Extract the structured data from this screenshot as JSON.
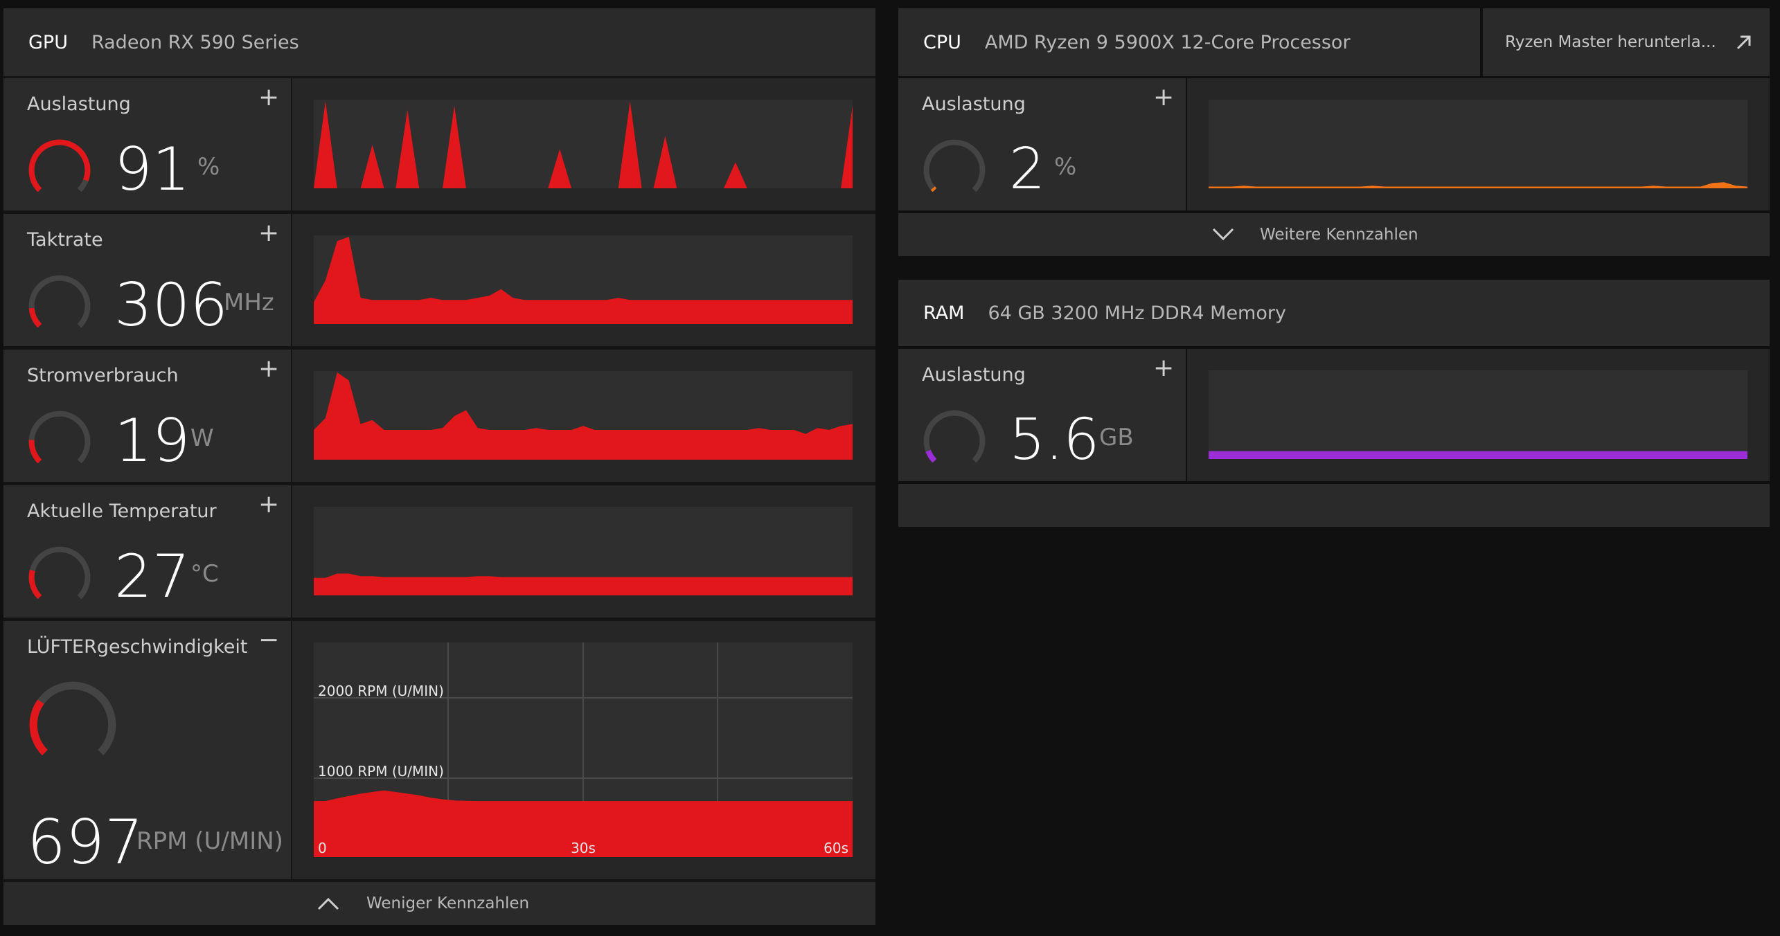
{
  "gpu": {
    "key": "GPU",
    "name": "Radeon RX 590 Series",
    "metrics": [
      {
        "label": "Auslastung",
        "value": "91",
        "unit": "%",
        "toggle": "+",
        "level": 0.91,
        "color": "#e2171c",
        "series": [
          0,
          100,
          0,
          0,
          0,
          50,
          0,
          0,
          90,
          0,
          0,
          0,
          95,
          0,
          0,
          0,
          0,
          0,
          0,
          0,
          0,
          45,
          0,
          0,
          0,
          0,
          0,
          100,
          0,
          0,
          60,
          0,
          0,
          0,
          0,
          0,
          30,
          0,
          0,
          0,
          0,
          0,
          0,
          0,
          0,
          0,
          95
        ]
      },
      {
        "label": "Taktrate",
        "value": "306",
        "unit": "MHz",
        "toggle": "+",
        "level": 0.15,
        "color": "#e2171c",
        "series": [
          10,
          20,
          38,
          40,
          12,
          11,
          11,
          11,
          11,
          11,
          12,
          11,
          11,
          11,
          12,
          13,
          16,
          12,
          11,
          11,
          11,
          11,
          11,
          11,
          11,
          11,
          12,
          11,
          11,
          11,
          11,
          11,
          11,
          11,
          11,
          11,
          11,
          11,
          11,
          11,
          11,
          11,
          11,
          11,
          11,
          11,
          11
        ]
      },
      {
        "label": "Stromverbrauch",
        "value": "19",
        "unit": "W",
        "toggle": "+",
        "level": 0.18,
        "color": "#e2171c",
        "series": [
          15,
          21,
          44,
          40,
          18,
          20,
          15,
          15,
          15,
          15,
          15,
          16,
          22,
          25,
          16,
          15,
          15,
          15,
          15,
          16,
          15,
          15,
          15,
          17,
          15,
          15,
          15,
          15,
          15,
          15,
          15,
          15,
          15,
          15,
          15,
          15,
          15,
          15,
          16,
          15,
          15,
          15,
          13,
          16,
          15,
          17,
          18
        ]
      },
      {
        "label": "Aktuelle Temperatur",
        "value": "27",
        "unit": "°C",
        "toggle": "+",
        "level": 0.22,
        "color": "#e2171c",
        "series": [
          20,
          20,
          25,
          25,
          22,
          22,
          21,
          21,
          21,
          21,
          21,
          21,
          21,
          21,
          22,
          22,
          21,
          21,
          21,
          21,
          21,
          21,
          21,
          21,
          21,
          21,
          21,
          21,
          21,
          21,
          21,
          21,
          21,
          21,
          21,
          21,
          21,
          21,
          21,
          21,
          21,
          21,
          21,
          21,
          21,
          21,
          21
        ]
      },
      {
        "label": "LÜFTERgeschwindigkeit",
        "value": "697",
        "unit": "RPM (U/MIN)",
        "toggle": "−",
        "level": 0.3,
        "color": "#e2171c",
        "series": [
          697,
          697,
          730,
          760,
          790,
          810,
          830,
          810,
          790,
          770,
          740,
          720,
          705,
          700,
          697,
          697,
          697,
          697,
          697,
          697,
          697,
          697,
          697,
          697,
          697,
          697,
          697,
          697,
          697,
          697,
          697,
          697,
          697,
          697,
          697,
          697,
          697,
          697,
          697,
          697,
          697,
          697,
          697,
          697,
          697,
          697,
          697
        ],
        "y_labels": [
          "2000 RPM (U/MIN)",
          "1000 RPM (U/MIN)"
        ],
        "x_labels": [
          "0",
          "30s",
          "60s"
        ]
      }
    ],
    "footer": "Weniger Kennzahlen"
  },
  "cpu": {
    "key": "CPU",
    "name": "AMD Ryzen 9 5900X 12-Core Processor",
    "link": "Ryzen Master herunterla...",
    "metric": {
      "label": "Auslastung",
      "value": "2",
      "unit": "%",
      "toggle": "+",
      "level": 0.02,
      "color": "#f27316",
      "series": [
        2,
        2,
        2,
        3,
        2,
        2,
        2,
        2,
        2,
        2,
        2,
        2,
        2,
        2,
        3,
        2,
        2,
        2,
        2,
        2,
        2,
        2,
        2,
        2,
        2,
        2,
        2,
        2,
        2,
        2,
        2,
        2,
        2,
        2,
        2,
        2,
        2,
        2,
        3,
        2,
        2,
        2,
        2,
        6,
        7,
        3,
        2
      ]
    },
    "footer": "Weitere Kennzahlen"
  },
  "ram": {
    "key": "RAM",
    "name": "64 GB 3200 MHz DDR4 Memory",
    "metric": {
      "label": "Auslastung",
      "value": "5.6",
      "unit": "GB",
      "toggle": "+",
      "level": 0.09,
      "color": "#9b2ed9",
      "series": [
        9,
        9,
        9,
        9,
        9,
        9,
        9,
        9,
        9,
        9,
        9,
        9,
        9,
        9,
        9,
        9,
        9,
        9,
        9,
        9,
        9,
        9,
        9,
        9,
        9,
        9,
        9,
        9,
        9,
        9,
        9,
        9,
        9,
        9,
        9,
        9,
        9,
        9,
        9,
        9,
        9,
        9,
        9,
        9,
        9,
        9,
        9
      ]
    }
  }
}
